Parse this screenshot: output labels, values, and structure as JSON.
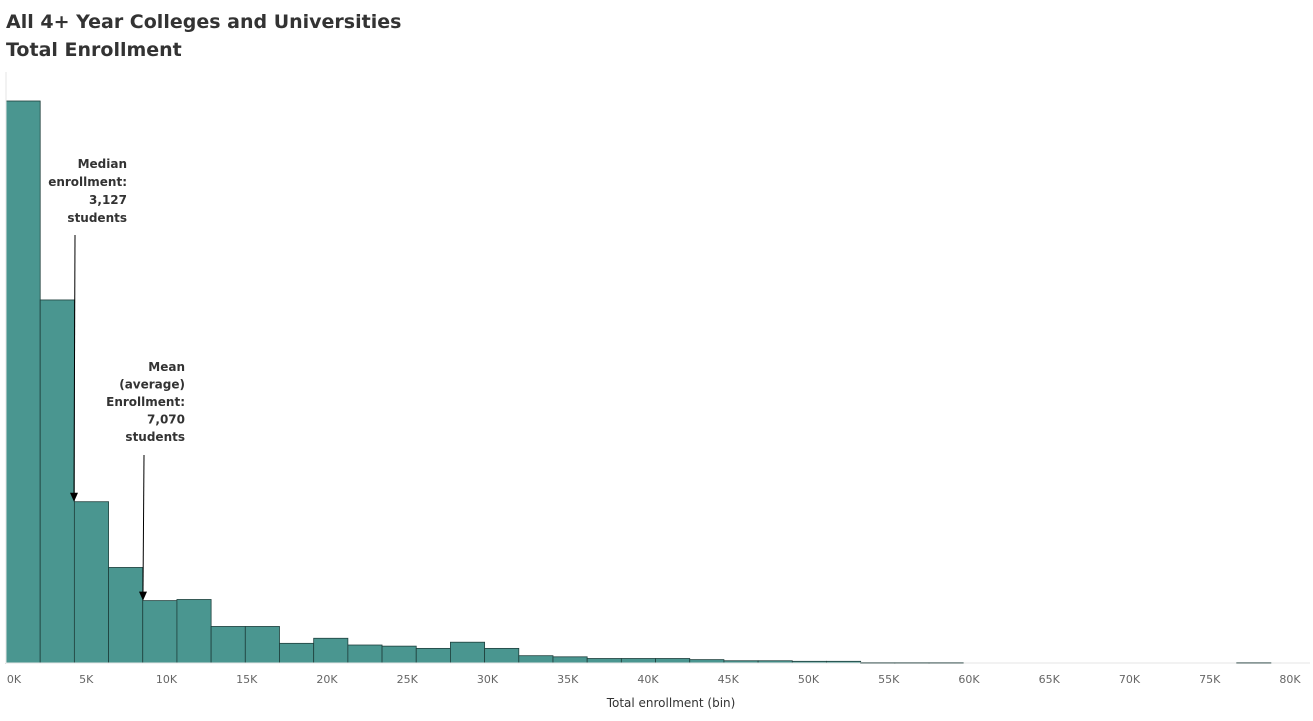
{
  "title": {
    "line1": "All 4+ Year Colleges and Universities",
    "line2": "Total Enrollment"
  },
  "chart_data": {
    "type": "bar",
    "title": "All 4+ Year Colleges and Universities Total Enrollment",
    "xlabel": "Total enrollment (bin)",
    "ylabel": "",
    "bin_width": 2130,
    "bins": [
      {
        "start": 0,
        "value": 1000
      },
      {
        "start": 2130,
        "value": 646
      },
      {
        "start": 4260,
        "value": 287
      },
      {
        "start": 6390,
        "value": 170
      },
      {
        "start": 8520,
        "value": 111
      },
      {
        "start": 10650,
        "value": 113
      },
      {
        "start": 12780,
        "value": 65
      },
      {
        "start": 14910,
        "value": 65
      },
      {
        "start": 17040,
        "value": 35
      },
      {
        "start": 19170,
        "value": 44
      },
      {
        "start": 21300,
        "value": 32
      },
      {
        "start": 23430,
        "value": 30
      },
      {
        "start": 25560,
        "value": 26
      },
      {
        "start": 27690,
        "value": 37
      },
      {
        "start": 29820,
        "value": 26
      },
      {
        "start": 31950,
        "value": 13
      },
      {
        "start": 34080,
        "value": 11
      },
      {
        "start": 36210,
        "value": 8
      },
      {
        "start": 38340,
        "value": 8
      },
      {
        "start": 40470,
        "value": 8
      },
      {
        "start": 42600,
        "value": 6
      },
      {
        "start": 44730,
        "value": 4
      },
      {
        "start": 46860,
        "value": 4
      },
      {
        "start": 48990,
        "value": 3
      },
      {
        "start": 51120,
        "value": 3
      },
      {
        "start": 53250,
        "value": 1
      },
      {
        "start": 55380,
        "value": 1
      },
      {
        "start": 57510,
        "value": 1
      },
      {
        "start": 76680,
        "value": 1
      }
    ],
    "xlim": [
      0,
      80000
    ],
    "x_ticks": [
      0,
      5000,
      10000,
      15000,
      20000,
      25000,
      30000,
      35000,
      40000,
      45000,
      50000,
      55000,
      60000,
      65000,
      70000,
      75000,
      80000
    ],
    "x_tick_labels": [
      "0K",
      "5K",
      "10K",
      "15K",
      "20K",
      "25K",
      "30K",
      "35K",
      "40K",
      "45K",
      "50K",
      "55K",
      "60K",
      "65K",
      "70K",
      "75K",
      "80K"
    ],
    "grid": false,
    "color": "#4a9690",
    "annotations": [
      {
        "lines": [
          "Median",
          "enrollment:",
          "3,127",
          "students"
        ],
        "x": 4260
      },
      {
        "lines": [
          "Mean",
          "(average)",
          "Enrollment:",
          "7,070",
          "students"
        ],
        "x": 8520
      }
    ]
  }
}
